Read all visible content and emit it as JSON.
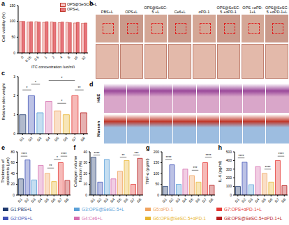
{
  "chart_data": [
    {
      "panel": "a",
      "type": "bar",
      "y_label": "Cell viability (%)",
      "x_label": "ITC concentration (μg/ml)",
      "categories": [
        "0",
        "0.25",
        "0.5",
        "1",
        "2",
        "4",
        "8",
        "16",
        "32"
      ],
      "series": [
        {
          "name": "OPS@SeSC-5+L",
          "color": "#f7c4c4",
          "values": [
            100,
            98,
            99,
            97,
            98,
            96,
            97,
            95,
            94
          ]
        },
        {
          "name": "OPS+L",
          "color": "#e8747c",
          "values": [
            100,
            99,
            98,
            99,
            97,
            98,
            96,
            97,
            95
          ]
        }
      ],
      "ylim": [
        0,
        150
      ],
      "yticks": [
        0,
        50,
        100,
        150
      ],
      "legend": "top-right"
    },
    {
      "panel": "c",
      "type": "bar",
      "y_label": "Relative skin weight",
      "categories": [
        "G1",
        "G2",
        "G3",
        "G4",
        "G5",
        "G6",
        "G7",
        "G8"
      ],
      "values": [
        1.0,
        2.0,
        1.1,
        1.7,
        1.2,
        1.0,
        2.0,
        1.1
      ],
      "colors": [
        "#1f3a6e",
        "#3f51b5",
        "#5aa0d8",
        "#d66fb0",
        "#f0a35e",
        "#e8b530",
        "#e53935",
        "#b71c1c"
      ],
      "ylim": [
        0,
        3
      ],
      "yticks": [
        0,
        1,
        2,
        3
      ],
      "significance": [
        {
          "from": "G1",
          "to": "G2",
          "y": 2.3,
          "label": "*"
        },
        {
          "from": "G2",
          "to": "G3",
          "y": 2.6,
          "label": "*"
        },
        {
          "from": "G5",
          "to": "G6",
          "y": 1.6,
          "label": "*"
        },
        {
          "from": "G4",
          "to": "G7",
          "y": 2.8,
          "label": "*"
        },
        {
          "from": "G7",
          "to": "G8",
          "y": 2.3,
          "label": "**"
        }
      ]
    },
    {
      "panel": "e",
      "type": "bar",
      "y_label": "Thickness of epidermis (μm)",
      "categories": [
        "G1",
        "G2",
        "G3",
        "G4",
        "G5",
        "G6",
        "G7",
        "G8"
      ],
      "values": [
        30,
        65,
        28,
        55,
        40,
        25,
        60,
        27
      ],
      "colors": [
        "#1f3a6e",
        "#3f51b5",
        "#5aa0d8",
        "#d66fb0",
        "#f0a35e",
        "#e8b530",
        "#e53935",
        "#b71c1c"
      ],
      "ylim": [
        0,
        80
      ],
      "yticks": [
        0,
        20,
        40,
        60,
        80
      ],
      "significance": [
        {
          "from": "G1",
          "to": "G2",
          "y": 72,
          "label": "****"
        },
        {
          "from": "G5",
          "to": "G6",
          "y": 50,
          "label": "**"
        },
        {
          "from": "G6",
          "to": "G7",
          "y": 66,
          "label": "*"
        },
        {
          "from": "G7",
          "to": "G8",
          "y": 72,
          "label": "****"
        }
      ]
    },
    {
      "panel": "f",
      "type": "bar",
      "y_label": "Collagen volume fraction (%)",
      "categories": [
        "G1",
        "G2",
        "G3",
        "G4",
        "G5",
        "G6",
        "G7",
        "G8"
      ],
      "values": [
        35,
        12,
        33,
        15,
        22,
        32,
        10,
        34
      ],
      "colors": [
        "#1f3a6e",
        "#3f51b5",
        "#5aa0d8",
        "#d66fb0",
        "#f0a35e",
        "#e8b530",
        "#e53935",
        "#b71c1c"
      ],
      "ylim": [
        0,
        40
      ],
      "yticks": [
        0,
        10,
        20,
        30,
        40
      ],
      "significance": [
        {
          "from": "G1",
          "to": "G2",
          "y": 37,
          "label": "****"
        },
        {
          "from": "G5",
          "to": "G6",
          "y": 35,
          "label": "**"
        },
        {
          "from": "G7",
          "to": "G8",
          "y": 37,
          "label": "***"
        }
      ]
    },
    {
      "panel": "g",
      "type": "bar",
      "y_label": "TNF-α (pg/ml)",
      "categories": [
        "G1",
        "G2",
        "G3",
        "G4",
        "G5",
        "G6",
        "G7",
        "G8"
      ],
      "values": [
        40,
        140,
        50,
        120,
        90,
        60,
        150,
        45
      ],
      "colors": [
        "#1f3a6e",
        "#3f51b5",
        "#5aa0d8",
        "#d66fb0",
        "#f0a35e",
        "#e8b530",
        "#e53935",
        "#b71c1c"
      ],
      "ylim": [
        0,
        200
      ],
      "yticks": [
        0,
        50,
        100,
        150,
        200
      ],
      "significance": [
        {
          "from": "G1",
          "to": "G2",
          "y": 165,
          "label": "****"
        },
        {
          "from": "G5",
          "to": "G6",
          "y": 115,
          "label": "***"
        },
        {
          "from": "G7",
          "to": "G8",
          "y": 175,
          "label": "****"
        }
      ]
    },
    {
      "panel": "h",
      "type": "bar",
      "y_label": "IL-6 (pg/ml)",
      "categories": [
        "G1",
        "G2",
        "G3",
        "G4",
        "G5",
        "G6",
        "G7",
        "G8"
      ],
      "values": [
        100,
        380,
        120,
        330,
        250,
        150,
        400,
        110
      ],
      "colors": [
        "#1f3a6e",
        "#3f51b5",
        "#5aa0d8",
        "#d66fb0",
        "#f0a35e",
        "#e8b530",
        "#e53935",
        "#b71c1c"
      ],
      "ylim": [
        0,
        500
      ],
      "yticks": [
        0,
        100,
        200,
        300,
        400,
        500
      ],
      "significance": [
        {
          "from": "G1",
          "to": "G2",
          "y": 430,
          "label": "****"
        },
        {
          "from": "G5",
          "to": "G6",
          "y": 300,
          "label": "****"
        },
        {
          "from": "G7",
          "to": "G8",
          "y": 450,
          "label": "****"
        }
      ]
    }
  ],
  "images": [
    {
      "panel": "b",
      "labels": [
        "PBS+L",
        "OPS+L",
        "OPS@SeSC-5 +L",
        "Ce6+L",
        "αPD-1",
        "OPS@SeSC-5 +αPD-1",
        "OPS +αPD-1+L",
        "OPS@SeSC-5 +αPD-1+L"
      ]
    },
    {
      "panel": "d",
      "rows": [
        "H&E",
        "Masson"
      ]
    }
  ],
  "group_legend": [
    {
      "label": "G1:PBS+L",
      "color": "#1f3a6e"
    },
    {
      "label": "G2:OPS+L",
      "color": "#3f51b5"
    },
    {
      "label": "G3:OPS@SeSC-5+L",
      "color": "#5aa0d8"
    },
    {
      "label": "G4:Ce6+L",
      "color": "#d66fb0"
    },
    {
      "label": "G5:αPD-1",
      "color": "#f0a35e"
    },
    {
      "label": "G6:OPS@SeSC-5+αPD-1",
      "color": "#e8b530"
    },
    {
      "label": "G7:OPS+αPD-1+L",
      "color": "#e53935"
    },
    {
      "label": "G8:OPS@SeSC-5+αPD-1+L",
      "color": "#b71c1c"
    }
  ]
}
